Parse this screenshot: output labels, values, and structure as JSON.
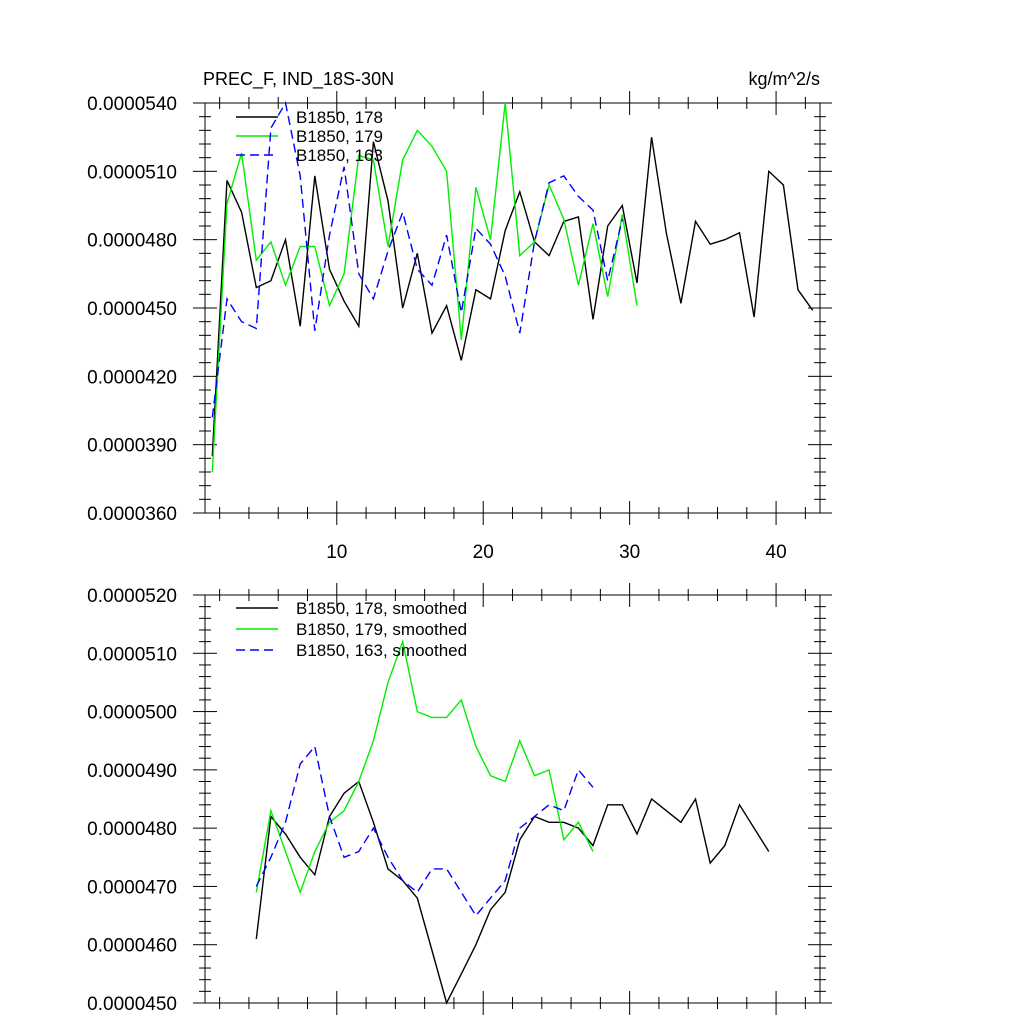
{
  "chart_data": [
    {
      "type": "line",
      "title": "PREC_F, IND_18S-30N",
      "units": "kg/m^2/s",
      "xlim": [
        1,
        43
      ],
      "ylim": [
        3.6e-05,
        5.4e-05
      ],
      "x_ticks": [
        10,
        20,
        30,
        40
      ],
      "x_tick_labels": [
        "10",
        "20",
        "30",
        "40"
      ],
      "y_ticks": [
        3.6e-05,
        3.9e-05,
        4.2e-05,
        4.5e-05,
        4.8e-05,
        5.1e-05,
        5.4e-05
      ],
      "y_tick_labels": [
        "0.0000360",
        "0.0000390",
        "0.0000420",
        "0.0000450",
        "0.0000480",
        "0.0000510",
        "0.0000540"
      ],
      "legend_position": "top-left",
      "series": [
        {
          "name": "B1850, 178",
          "color": "#000000",
          "dash": "solid",
          "x": [
            1.5,
            2.5,
            3.5,
            4.5,
            5.5,
            6.5,
            7.5,
            8.5,
            9.5,
            10.5,
            11.5,
            12.5,
            13.5,
            14.5,
            15.5,
            16.5,
            17.5,
            18.5,
            19.5,
            20.5,
            21.5,
            22.5,
            23.5,
            24.5,
            25.5,
            26.5,
            27.5,
            28.5,
            29.5,
            30.5,
            31.5,
            32.5,
            33.5,
            34.5,
            35.5,
            36.5,
            37.5,
            38.5,
            39.5,
            40.5,
            41.5,
            42.5
          ],
          "y": [
            3.85e-05,
            5.06e-05,
            4.92e-05,
            4.59e-05,
            4.62e-05,
            4.8e-05,
            4.42e-05,
            5.08e-05,
            4.67e-05,
            4.53e-05,
            4.42e-05,
            5.23e-05,
            4.97e-05,
            4.5e-05,
            4.74e-05,
            4.39e-05,
            4.51e-05,
            4.27e-05,
            4.58e-05,
            4.54e-05,
            4.84e-05,
            5.01e-05,
            4.79e-05,
            4.73e-05,
            4.88e-05,
            4.9e-05,
            4.45e-05,
            4.86e-05,
            4.95e-05,
            4.61e-05,
            5.25e-05,
            4.83e-05,
            4.52e-05,
            4.88e-05,
            4.78e-05,
            4.8e-05,
            4.83e-05,
            4.46e-05,
            5.1e-05,
            5.04e-05,
            4.58e-05,
            4.49e-05
          ]
        },
        {
          "name": "B1850, 179",
          "color": "#00ee00",
          "dash": "solid",
          "x": [
            1.5,
            2.5,
            3.5,
            4.5,
            5.5,
            6.5,
            7.5,
            8.5,
            9.5,
            10.5,
            11.5,
            12.5,
            13.5,
            14.5,
            15.5,
            16.5,
            17.5,
            18.5,
            19.5,
            20.5,
            21.5,
            22.5,
            23.5,
            24.5,
            25.5,
            26.5,
            27.5,
            28.5,
            29.5,
            30.5
          ],
          "y": [
            3.78e-05,
            4.96e-05,
            5.18e-05,
            4.71e-05,
            4.79e-05,
            4.6e-05,
            4.77e-05,
            4.77e-05,
            4.51e-05,
            4.65e-05,
            5.17e-05,
            5.15e-05,
            4.77e-05,
            5.15e-05,
            5.28e-05,
            5.21e-05,
            5.1e-05,
            4.36e-05,
            5.03e-05,
            4.8e-05,
            5.4e-05,
            4.73e-05,
            4.79e-05,
            5.04e-05,
            4.89e-05,
            4.6e-05,
            4.87e-05,
            4.55e-05,
            4.91e-05,
            4.51e-05
          ]
        },
        {
          "name": "B1850, 163",
          "color": "#0000ff",
          "dash": "dashed",
          "x": [
            1.5,
            2.5,
            3.5,
            4.5,
            5.5,
            6.5,
            7.5,
            8.5,
            9.5,
            10.5,
            11.5,
            12.5,
            13.5,
            14.5,
            15.5,
            16.5,
            17.5,
            18.5,
            19.5,
            20.5,
            21.5,
            22.5,
            23.5,
            24.5,
            25.5,
            26.5,
            27.5,
            28.5,
            29.5
          ],
          "y": [
            4.02e-05,
            4.54e-05,
            4.44e-05,
            4.41e-05,
            5.29e-05,
            5.4e-05,
            5.08e-05,
            4.4e-05,
            4.82e-05,
            5.12e-05,
            4.65e-05,
            4.54e-05,
            4.75e-05,
            4.92e-05,
            4.67e-05,
            4.6e-05,
            4.82e-05,
            4.48e-05,
            4.85e-05,
            4.78e-05,
            4.64e-05,
            4.39e-05,
            4.79e-05,
            5.05e-05,
            5.08e-05,
            4.99e-05,
            4.93e-05,
            4.62e-05,
            4.89e-05
          ]
        }
      ]
    },
    {
      "type": "line",
      "xlim": [
        1,
        43
      ],
      "ylim": [
        4.5e-05,
        5.2e-05
      ],
      "x_ticks": [
        10,
        20,
        30,
        40
      ],
      "y_ticks": [
        4.5e-05,
        4.6e-05,
        4.7e-05,
        4.8e-05,
        4.9e-05,
        5e-05,
        5.1e-05,
        5.2e-05
      ],
      "y_tick_labels": [
        "0.0000450",
        "0.0000460",
        "0.0000470",
        "0.0000480",
        "0.0000490",
        "0.0000500",
        "0.0000510",
        "0.0000520"
      ],
      "legend_position": "top-left",
      "series": [
        {
          "name": "B1850, 178, smoothed",
          "color": "#000000",
          "dash": "solid",
          "x": [
            4.5,
            5.5,
            6.5,
            7.5,
            8.5,
            9.5,
            10.5,
            11.5,
            12.5,
            13.5,
            14.5,
            15.5,
            16.5,
            17.5,
            18.5,
            19.5,
            20.5,
            21.5,
            22.5,
            23.5,
            24.5,
            25.5,
            26.5,
            27.5,
            28.5,
            29.5,
            30.5,
            31.5,
            32.5,
            33.5,
            34.5,
            35.5,
            36.5,
            37.5,
            38.5,
            39.5
          ],
          "y": [
            4.61e-05,
            4.82e-05,
            4.79e-05,
            4.75e-05,
            4.72e-05,
            4.82e-05,
            4.86e-05,
            4.88e-05,
            4.81e-05,
            4.73e-05,
            4.71e-05,
            4.68e-05,
            4.59e-05,
            4.5e-05,
            4.55e-05,
            4.6e-05,
            4.66e-05,
            4.69e-05,
            4.78e-05,
            4.82e-05,
            4.81e-05,
            4.81e-05,
            4.8e-05,
            4.77e-05,
            4.84e-05,
            4.84e-05,
            4.79e-05,
            4.85e-05,
            4.83e-05,
            4.81e-05,
            4.85e-05,
            4.74e-05,
            4.77e-05,
            4.84e-05,
            4.8e-05,
            4.76e-05
          ]
        },
        {
          "name": "B1850, 179, smoothed",
          "color": "#00ee00",
          "dash": "solid",
          "x": [
            4.5,
            5.5,
            6.5,
            7.5,
            8.5,
            9.5,
            10.5,
            11.5,
            12.5,
            13.5,
            14.5,
            15.5,
            16.5,
            17.5,
            18.5,
            19.5,
            20.5,
            21.5,
            22.5,
            23.5,
            24.5,
            25.5,
            26.5,
            27.5
          ],
          "y": [
            4.69e-05,
            4.83e-05,
            4.76e-05,
            4.69e-05,
            4.76e-05,
            4.81e-05,
            4.83e-05,
            4.88e-05,
            4.95e-05,
            5.05e-05,
            5.12e-05,
            5e-05,
            4.99e-05,
            4.99e-05,
            5.02e-05,
            4.94e-05,
            4.89e-05,
            4.88e-05,
            4.95e-05,
            4.89e-05,
            4.9e-05,
            4.78e-05,
            4.81e-05,
            4.76e-05
          ]
        },
        {
          "name": "B1850, 163, smoothed",
          "color": "#0000ff",
          "dash": "dashed",
          "x": [
            4.5,
            5.5,
            6.5,
            7.5,
            8.5,
            9.5,
            10.5,
            11.5,
            12.5,
            13.5,
            14.5,
            15.5,
            16.5,
            17.5,
            18.5,
            19.5,
            20.5,
            21.5,
            22.5,
            23.5,
            24.5,
            25.5,
            26.5,
            27.5
          ],
          "y": [
            4.7e-05,
            4.75e-05,
            4.81e-05,
            4.91e-05,
            4.94e-05,
            4.82e-05,
            4.75e-05,
            4.76e-05,
            4.8e-05,
            4.75e-05,
            4.71e-05,
            4.69e-05,
            4.73e-05,
            4.73e-05,
            4.69e-05,
            4.65e-05,
            4.68e-05,
            4.71e-05,
            4.8e-05,
            4.82e-05,
            4.84e-05,
            4.83e-05,
            4.9e-05,
            4.87e-05
          ]
        }
      ]
    }
  ]
}
